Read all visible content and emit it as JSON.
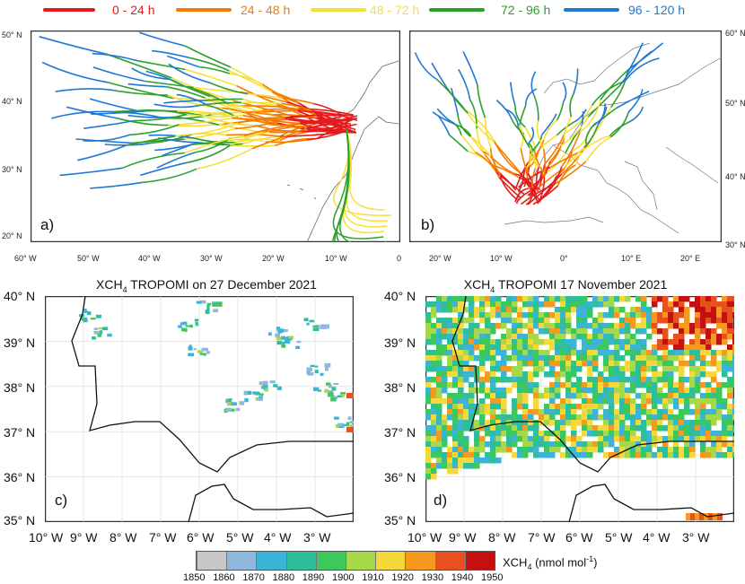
{
  "legend": [
    {
      "label": "0 - 24 h",
      "color": "#e41a1c"
    },
    {
      "label": "24 - 48 h",
      "color": "#f57c00"
    },
    {
      "label": "48 - 72 h",
      "color": "#f5e03a"
    },
    {
      "label": "72 - 96 h",
      "color": "#2ca02c"
    },
    {
      "label": "96 - 120 h",
      "color": "#1f78d4"
    }
  ],
  "panel_a": {
    "label": "a)",
    "x_ticks": [
      "60° W",
      "50° W",
      "40° W",
      "30° W",
      "20° W",
      "10° W",
      "0"
    ],
    "y_ticks": [
      "50° N",
      "40° N",
      "30° N",
      "20° N"
    ]
  },
  "panel_b": {
    "label": "b)",
    "x_ticks": [
      "20° W",
      "10° W",
      "0°",
      "10° E",
      "20° E"
    ],
    "y_ticks": [
      "60° N",
      "50° N",
      "40° N",
      "30° N"
    ]
  },
  "panel_c": {
    "label": "c)",
    "title_pre": "XCH",
    "title_sub": "4",
    "title_post": " TROPOMI on 27 December 2021",
    "x_ticks": [
      "10° W",
      "9° W",
      "8° W",
      "7° W",
      "6° W",
      "5° W",
      "4° W",
      "3° W"
    ],
    "y_ticks": [
      "40° N",
      "39° N",
      "38° N",
      "37° N",
      "36° N",
      "35° N"
    ]
  },
  "panel_d": {
    "label": "d)",
    "title_pre": "XCH",
    "title_sub": "4",
    "title_post": " TROPOMI 17 November 2021",
    "x_ticks": [
      "10° W",
      "9° W",
      "8° W",
      "7° W",
      "6° W",
      "5° W",
      "4° W",
      "3° W"
    ],
    "y_ticks": [
      "40° N",
      "39° N",
      "38° N",
      "37° N",
      "36° N",
      "35° N"
    ]
  },
  "colorbar": {
    "ticks": [
      "1850",
      "1860",
      "1870",
      "1880",
      "1890",
      "1900",
      "1910",
      "1920",
      "1930",
      "1940",
      "1950"
    ],
    "colors": [
      "#ffffff",
      "#c8c8c8",
      "#8fb8dc",
      "#3cb4d8",
      "#2fbe9c",
      "#3cc85a",
      "#a6d84a",
      "#f5d83a",
      "#f59a1e",
      "#e8501e",
      "#c41010"
    ],
    "unit_pre": "XCH",
    "unit_sub": "4",
    "unit_post": " (nmol mol",
    "unit_sup": "-1",
    "unit_end": ")"
  }
}
